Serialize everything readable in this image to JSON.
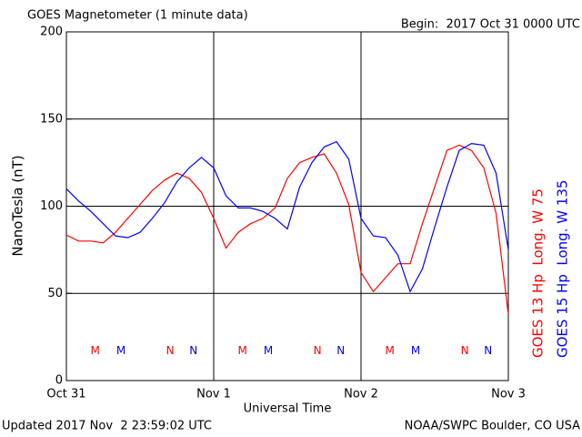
{
  "chart_data": {
    "type": "line",
    "title": "GOES Magnetometer (1 minute data)",
    "subtitle": "Begin:  2017 Oct 31 0000 UTC",
    "ylabel": "NanoTesla (nT)",
    "xlabel": "Universal Time",
    "footer_left": "Updated 2017 Nov  2 23:59:02 UTC",
    "footer_right": "NOAA/SWPC Boulder, CO USA",
    "x": [
      0,
      2,
      4,
      6,
      8,
      10,
      12,
      14,
      16,
      18,
      20,
      22,
      24,
      26,
      28,
      30,
      32,
      34,
      36,
      38,
      40,
      42,
      44,
      46,
      48,
      50,
      52,
      54,
      56,
      58,
      60,
      62,
      64,
      66,
      68,
      70,
      72
    ],
    "series": [
      {
        "name": "GOES 13 Hp  Long. W 75",
        "color": "#ff0000",
        "values": [
          83.5,
          80,
          80,
          79,
          85,
          93,
          101,
          109,
          115,
          119,
          116,
          108,
          93,
          76,
          85,
          90,
          93,
          99,
          116,
          125,
          128,
          130,
          119,
          101,
          62,
          51,
          59,
          67,
          67,
          90,
          111,
          132,
          135,
          132,
          122,
          96,
          38
        ]
      },
      {
        "name": "GOES 15 Hp  Long. W 135",
        "color": "#0000ff",
        "values": [
          110,
          103,
          97,
          90,
          83,
          82,
          85,
          93,
          102,
          114,
          122,
          128,
          122,
          106,
          99,
          99,
          97,
          93,
          87,
          111,
          125,
          134,
          137,
          127,
          93,
          83,
          82,
          72,
          51,
          64,
          88,
          111,
          132,
          136,
          135,
          119,
          75
        ]
      }
    ],
    "markers": [
      {
        "text": "M",
        "x": 4.7,
        "series": 0
      },
      {
        "text": "M",
        "x": 8.9,
        "series": 1
      },
      {
        "text": "N",
        "x": 16.9,
        "series": 0
      },
      {
        "text": "N",
        "x": 20.7,
        "series": 1
      },
      {
        "text": "M",
        "x": 28.7,
        "series": 0
      },
      {
        "text": "M",
        "x": 32.9,
        "series": 1
      },
      {
        "text": "N",
        "x": 40.9,
        "series": 0
      },
      {
        "text": "N",
        "x": 44.7,
        "series": 1
      },
      {
        "text": "M",
        "x": 52.7,
        "series": 0
      },
      {
        "text": "M",
        "x": 56.9,
        "series": 1
      },
      {
        "text": "N",
        "x": 64.9,
        "series": 0
      },
      {
        "text": "N",
        "x": 68.7,
        "series": 1
      }
    ],
    "marker_level": 17,
    "xlim": [
      0,
      72
    ],
    "xticks": [
      {
        "value": 0,
        "label": "Oct 31"
      },
      {
        "value": 24,
        "label": "Nov 1"
      },
      {
        "value": 48,
        "label": "Nov 2"
      },
      {
        "value": 72,
        "label": "Nov 3"
      }
    ],
    "ylim": [
      0,
      200
    ],
    "yticks": [
      0,
      50,
      100,
      150,
      200
    ],
    "grid": true
  }
}
